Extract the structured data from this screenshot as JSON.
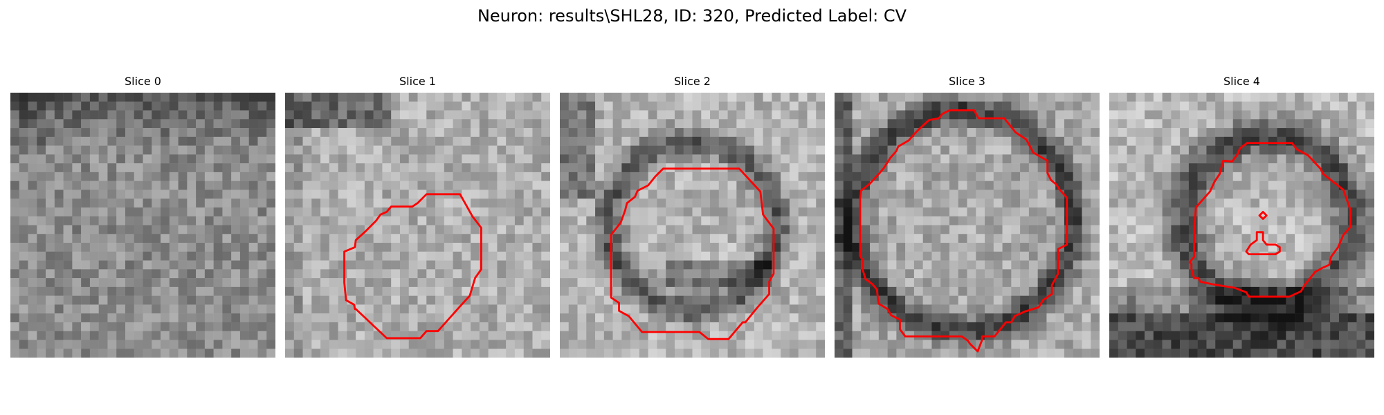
{
  "figure": {
    "title": "Neuron: results\\SHL28, ID: 320, Predicted Label: CV"
  },
  "slices": [
    {
      "label": "Slice 0",
      "contour": false
    },
    {
      "label": "Slice 1",
      "contour": true
    },
    {
      "label": "Slice 2",
      "contour": true
    },
    {
      "label": "Slice 3",
      "contour": true
    },
    {
      "label": "Slice 4",
      "contour": true
    }
  ],
  "colors": {
    "contour": "#ff0000",
    "background": "#ffffff"
  }
}
